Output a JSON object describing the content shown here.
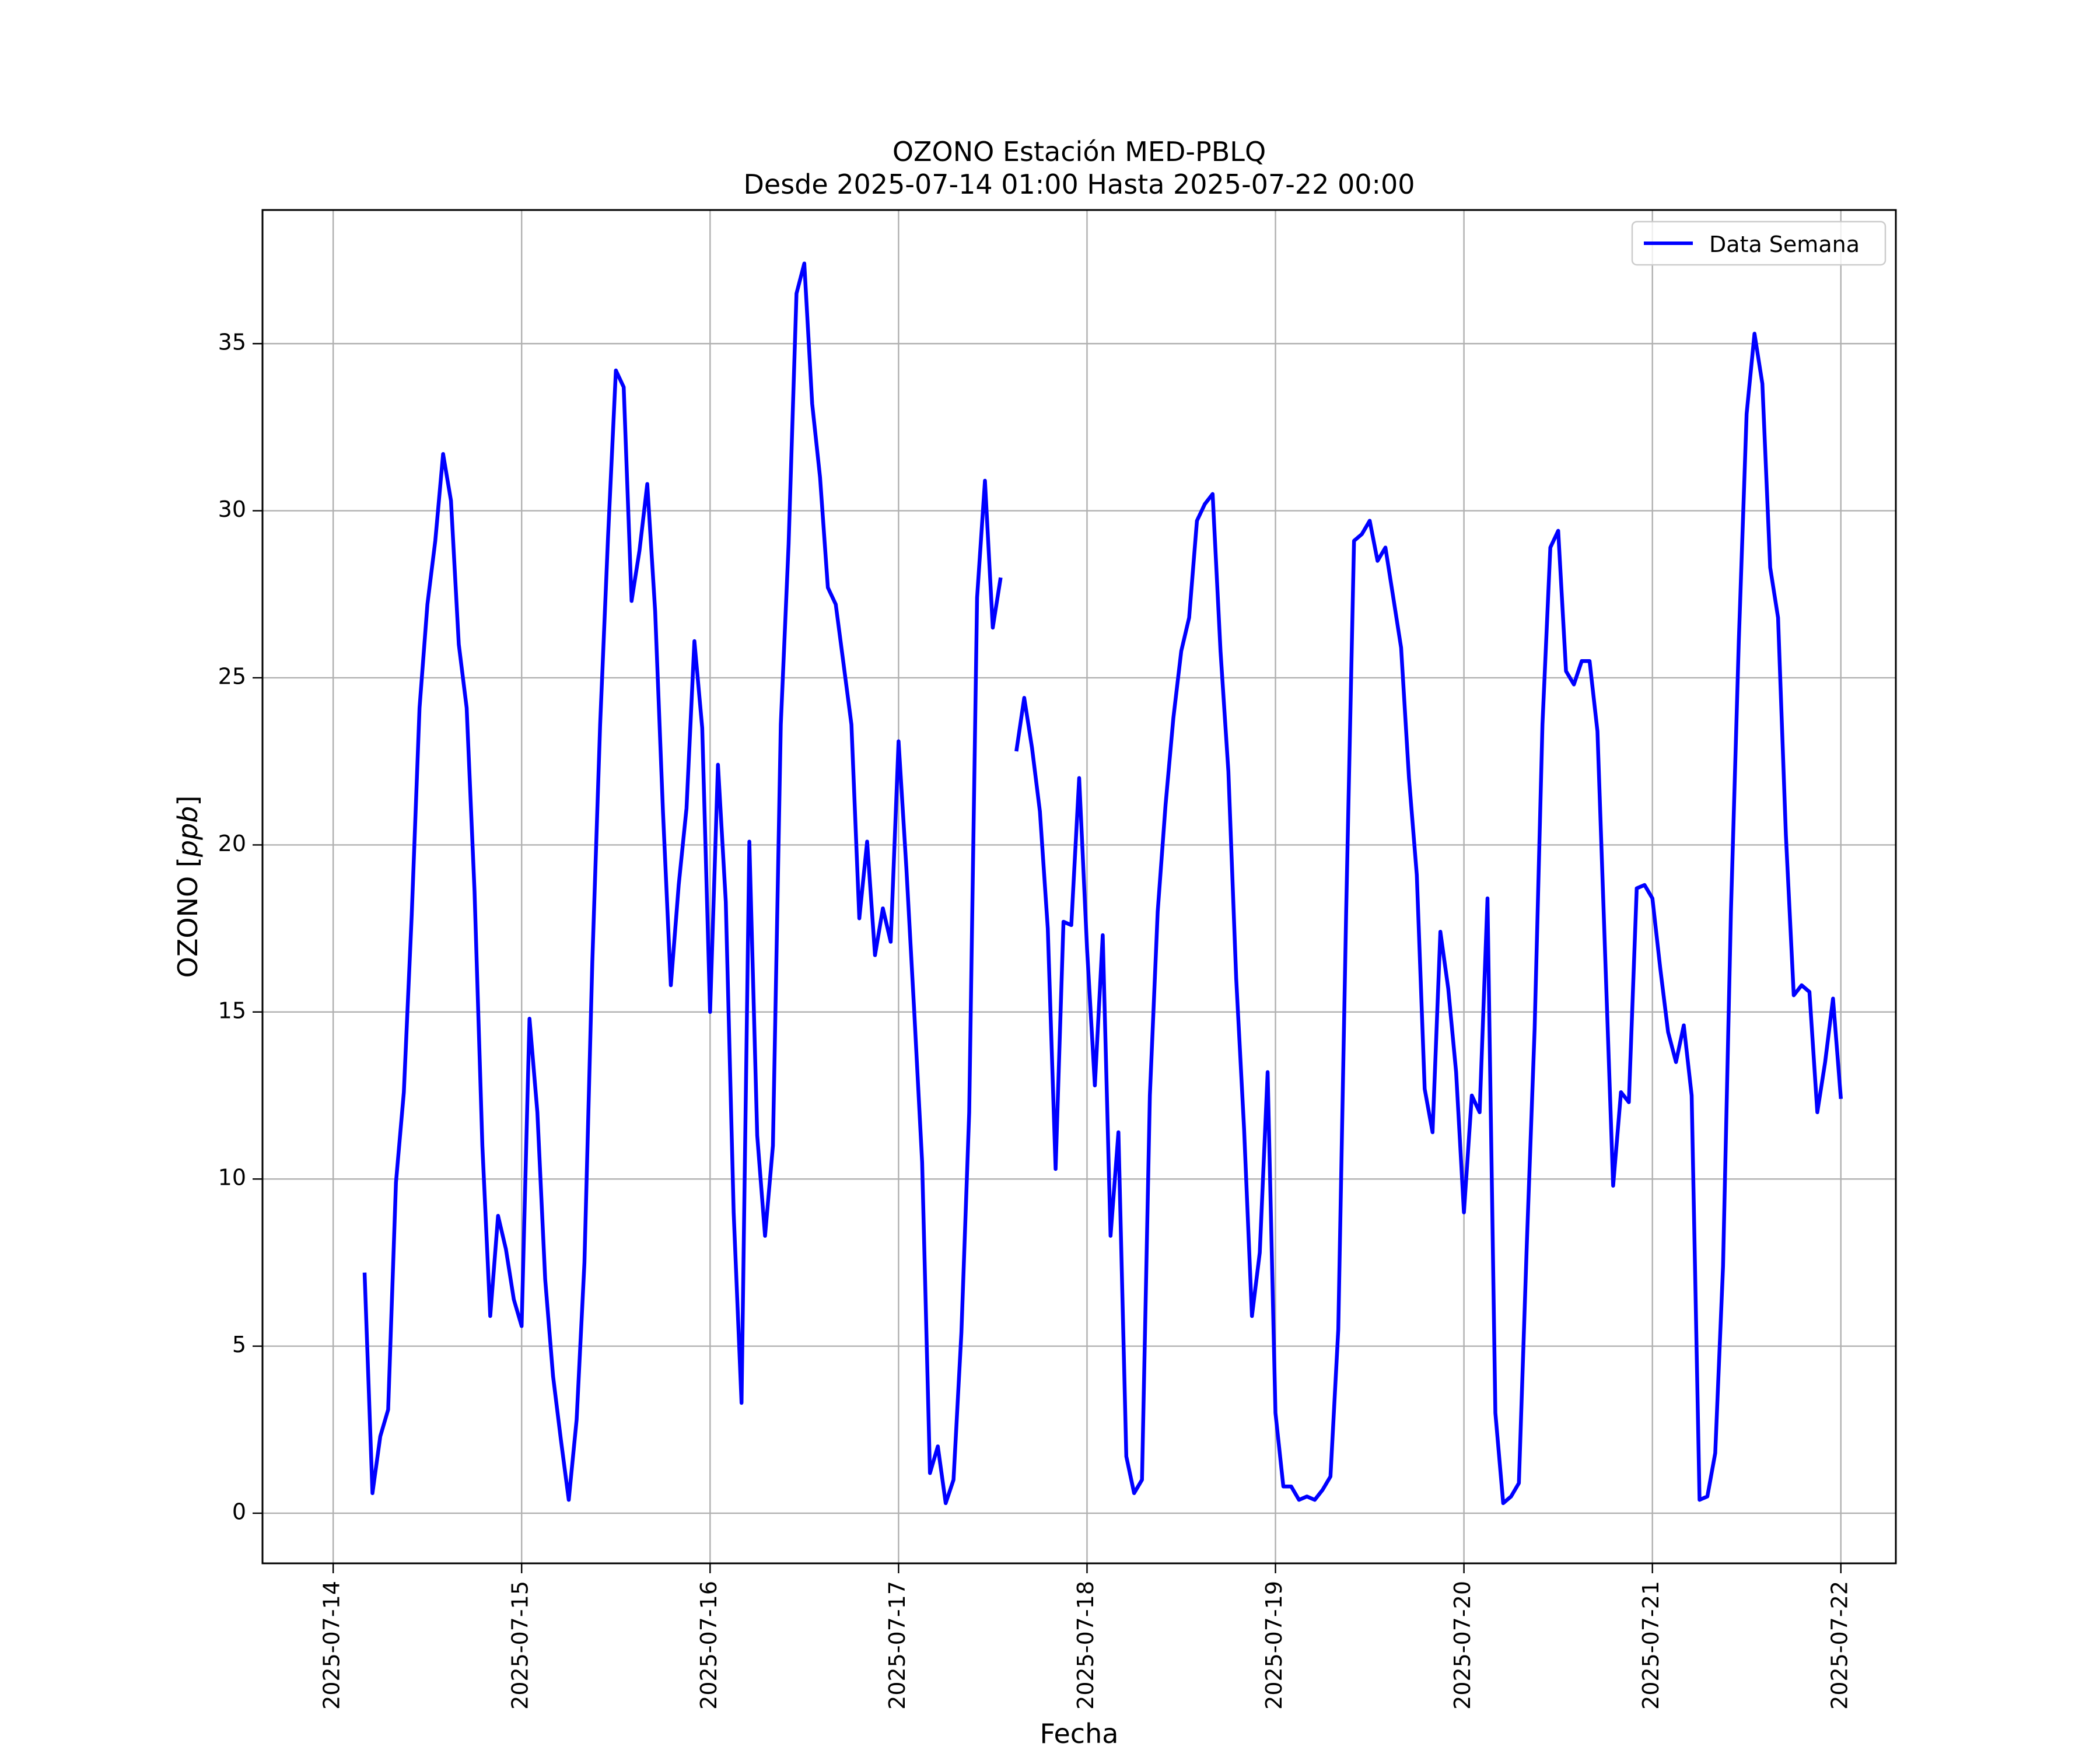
{
  "chart_data": {
    "type": "line",
    "title": "OZONO Estación MED-PBLQ",
    "subtitle": "Desde 2025-07-14 01:00 Hasta 2025-07-22 00:00",
    "xlabel": "Fecha",
    "ylabel": "OZONO [ppb]",
    "ylabel_prefix": "OZONO [",
    "ylabel_unit": "ppb",
    "ylabel_suffix": "]",
    "xlim": [
      "2025-07-13 15:00",
      "2025-07-22 07:00"
    ],
    "ylim": [
      -1.5,
      39
    ],
    "x_ticks": [
      "2025-07-14",
      "2025-07-15",
      "2025-07-16",
      "2025-07-17",
      "2025-07-18",
      "2025-07-19",
      "2025-07-20",
      "2025-07-21",
      "2025-07-22"
    ],
    "y_ticks": [
      0,
      5,
      10,
      15,
      20,
      25,
      30,
      35
    ],
    "y_tick_labels": [
      "0",
      "5",
      "10",
      "15",
      "20",
      "25",
      "30",
      "35"
    ],
    "grid": true,
    "legend_position": "upper right",
    "series": [
      {
        "name": "Data Semana",
        "color": "#0000ff",
        "segments": [
          {
            "x": [
              "2025-07-14 04:00",
              "2025-07-14 05:00",
              "2025-07-14 06:00",
              "2025-07-14 07:00",
              "2025-07-14 08:00",
              "2025-07-14 09:00",
              "2025-07-14 10:00",
              "2025-07-14 11:00",
              "2025-07-14 12:00",
              "2025-07-14 13:00",
              "2025-07-14 14:00",
              "2025-07-14 15:00",
              "2025-07-14 16:00",
              "2025-07-14 17:00",
              "2025-07-14 18:00",
              "2025-07-14 19:00",
              "2025-07-14 20:00",
              "2025-07-14 21:00",
              "2025-07-14 22:00",
              "2025-07-14 23:00",
              "2025-07-15 00:00",
              "2025-07-15 01:00",
              "2025-07-15 02:00",
              "2025-07-15 03:00",
              "2025-07-15 04:00",
              "2025-07-15 05:00",
              "2025-07-15 06:00",
              "2025-07-15 07:00",
              "2025-07-15 08:00",
              "2025-07-15 09:00",
              "2025-07-15 10:00",
              "2025-07-15 11:00",
              "2025-07-15 12:00",
              "2025-07-15 13:00",
              "2025-07-15 14:00",
              "2025-07-15 15:00",
              "2025-07-15 16:00",
              "2025-07-15 17:00",
              "2025-07-15 18:00",
              "2025-07-15 19:00",
              "2025-07-15 20:00",
              "2025-07-15 21:00",
              "2025-07-15 22:00",
              "2025-07-15 23:00",
              "2025-07-16 00:00",
              "2025-07-16 01:00",
              "2025-07-16 02:00",
              "2025-07-16 03:00",
              "2025-07-16 04:00",
              "2025-07-16 05:00",
              "2025-07-16 06:00",
              "2025-07-16 07:00",
              "2025-07-16 08:00",
              "2025-07-16 09:00",
              "2025-07-16 10:00",
              "2025-07-16 11:00",
              "2025-07-16 12:00",
              "2025-07-16 13:00",
              "2025-07-16 14:00",
              "2025-07-16 15:00",
              "2025-07-16 16:00",
              "2025-07-16 17:00",
              "2025-07-16 18:00",
              "2025-07-16 19:00",
              "2025-07-16 20:00",
              "2025-07-16 21:00",
              "2025-07-16 22:00",
              "2025-07-16 23:00",
              "2025-07-17 00:00",
              "2025-07-17 01:00",
              "2025-07-17 02:00",
              "2025-07-17 03:00",
              "2025-07-17 04:00",
              "2025-07-17 05:00",
              "2025-07-17 06:00",
              "2025-07-17 07:00",
              "2025-07-17 08:00",
              "2025-07-17 09:00",
              "2025-07-17 10:00",
              "2025-07-17 11:00",
              "2025-07-17 12:00",
              "2025-07-17 13:00"
            ],
            "y": [
              7.2,
              0.6,
              2.3,
              3.1,
              9.9,
              12.6,
              17.9,
              24.1,
              27.2,
              29.1,
              31.7,
              30.3,
              26.0,
              24.1,
              18.6,
              11.0,
              5.9,
              8.9,
              7.9,
              6.4,
              5.6,
              14.8,
              12.0,
              7.0,
              4.1,
              2.2,
              0.4,
              2.8,
              7.5,
              16.5,
              23.6,
              29.2,
              34.2,
              33.7,
              27.3,
              28.8,
              30.8,
              27.0,
              21.0,
              15.8,
              18.8,
              21.1,
              26.1,
              23.5,
              15.0,
              22.4,
              18.3,
              9.0,
              3.3,
              20.1,
              11.3,
              8.3,
              11.0,
              23.6,
              29.0,
              36.5,
              37.4,
              33.2,
              31.0,
              27.7,
              27.2,
              25.4,
              23.6,
              17.8,
              20.1,
              16.7,
              18.1,
              17.1,
              23.1,
              19.3,
              15.0,
              10.5,
              1.2,
              2.0,
              0.3,
              1.0,
              5.4,
              12.0,
              27.4,
              30.9,
              26.5,
              28.0
            ]
          },
          {
            "x": [
              "2025-07-17 15:00",
              "2025-07-17 16:00",
              "2025-07-17 17:00",
              "2025-07-17 18:00",
              "2025-07-17 19:00",
              "2025-07-17 20:00",
              "2025-07-17 21:00",
              "2025-07-17 22:00",
              "2025-07-17 23:00",
              "2025-07-18 00:00",
              "2025-07-18 01:00",
              "2025-07-18 02:00",
              "2025-07-18 03:00",
              "2025-07-18 04:00",
              "2025-07-18 05:00",
              "2025-07-18 06:00",
              "2025-07-18 07:00",
              "2025-07-18 08:00",
              "2025-07-18 09:00",
              "2025-07-18 10:00",
              "2025-07-18 11:00",
              "2025-07-18 12:00",
              "2025-07-18 13:00",
              "2025-07-18 14:00",
              "2025-07-18 15:00",
              "2025-07-18 16:00",
              "2025-07-18 17:00",
              "2025-07-18 18:00",
              "2025-07-18 19:00",
              "2025-07-18 20:00",
              "2025-07-18 21:00",
              "2025-07-18 22:00",
              "2025-07-18 23:00",
              "2025-07-19 00:00",
              "2025-07-19 01:00",
              "2025-07-19 02:00",
              "2025-07-19 03:00",
              "2025-07-19 04:00",
              "2025-07-19 05:00",
              "2025-07-19 06:00",
              "2025-07-19 07:00",
              "2025-07-19 08:00",
              "2025-07-19 09:00",
              "2025-07-19 10:00",
              "2025-07-19 11:00",
              "2025-07-19 12:00",
              "2025-07-19 13:00",
              "2025-07-19 14:00",
              "2025-07-19 15:00",
              "2025-07-19 16:00",
              "2025-07-19 17:00",
              "2025-07-19 18:00",
              "2025-07-19 19:00",
              "2025-07-19 20:00",
              "2025-07-19 21:00",
              "2025-07-19 22:00",
              "2025-07-19 23:00",
              "2025-07-20 00:00",
              "2025-07-20 01:00",
              "2025-07-20 02:00",
              "2025-07-20 03:00",
              "2025-07-20 04:00",
              "2025-07-20 05:00",
              "2025-07-20 06:00",
              "2025-07-20 07:00",
              "2025-07-20 08:00",
              "2025-07-20 09:00",
              "2025-07-20 10:00",
              "2025-07-20 11:00",
              "2025-07-20 12:00",
              "2025-07-20 13:00",
              "2025-07-20 14:00",
              "2025-07-20 15:00",
              "2025-07-20 16:00",
              "2025-07-20 17:00",
              "2025-07-20 18:00",
              "2025-07-20 19:00",
              "2025-07-20 20:00",
              "2025-07-20 21:00",
              "2025-07-20 22:00",
              "2025-07-20 23:00",
              "2025-07-21 00:00",
              "2025-07-21 01:00",
              "2025-07-21 02:00",
              "2025-07-21 03:00",
              "2025-07-21 04:00",
              "2025-07-21 05:00",
              "2025-07-21 06:00",
              "2025-07-21 07:00",
              "2025-07-21 08:00",
              "2025-07-21 09:00",
              "2025-07-21 10:00",
              "2025-07-21 11:00",
              "2025-07-21 12:00",
              "2025-07-21 13:00",
              "2025-07-21 14:00",
              "2025-07-21 15:00",
              "2025-07-21 16:00",
              "2025-07-21 17:00",
              "2025-07-21 18:00",
              "2025-07-21 19:00",
              "2025-07-21 20:00",
              "2025-07-21 21:00",
              "2025-07-21 22:00",
              "2025-07-21 23:00",
              "2025-07-22 00:00"
            ],
            "y": [
              22.8,
              24.4,
              22.9,
              21.0,
              17.5,
              10.3,
              17.7,
              17.6,
              22.0,
              16.9,
              12.8,
              17.3,
              8.3,
              11.4,
              1.7,
              0.6,
              1.0,
              12.5,
              18.0,
              21.2,
              23.8,
              25.8,
              26.8,
              29.7,
              30.2,
              30.5,
              25.8,
              22.2,
              16.0,
              11.5,
              5.9,
              7.8,
              13.2,
              3.0,
              0.8,
              0.8,
              0.4,
              0.5,
              0.4,
              0.7,
              1.1,
              5.5,
              18.0,
              29.1,
              29.3,
              29.7,
              28.5,
              28.9,
              27.4,
              25.9,
              22.0,
              19.1,
              12.7,
              11.4,
              17.4,
              15.7,
              13.2,
              9.0,
              12.5,
              12.0,
              18.4,
              3.0,
              0.3,
              0.5,
              0.9,
              8.0,
              14.5,
              23.6,
              28.9,
              29.4,
              25.2,
              24.8,
              25.5,
              25.5,
              23.4,
              16.6,
              9.8,
              12.6,
              12.3,
              18.7,
              18.8,
              18.4,
              16.3,
              14.4,
              13.5,
              14.6,
              12.5,
              0.4,
              0.5,
              1.8,
              7.4,
              18.0,
              26.1,
              32.9,
              35.3,
              33.8,
              28.3,
              26.8,
              20.3,
              15.5,
              15.8,
              15.6,
              12.0,
              13.5,
              15.4,
              12.4
            ]
          }
        ]
      }
    ]
  }
}
